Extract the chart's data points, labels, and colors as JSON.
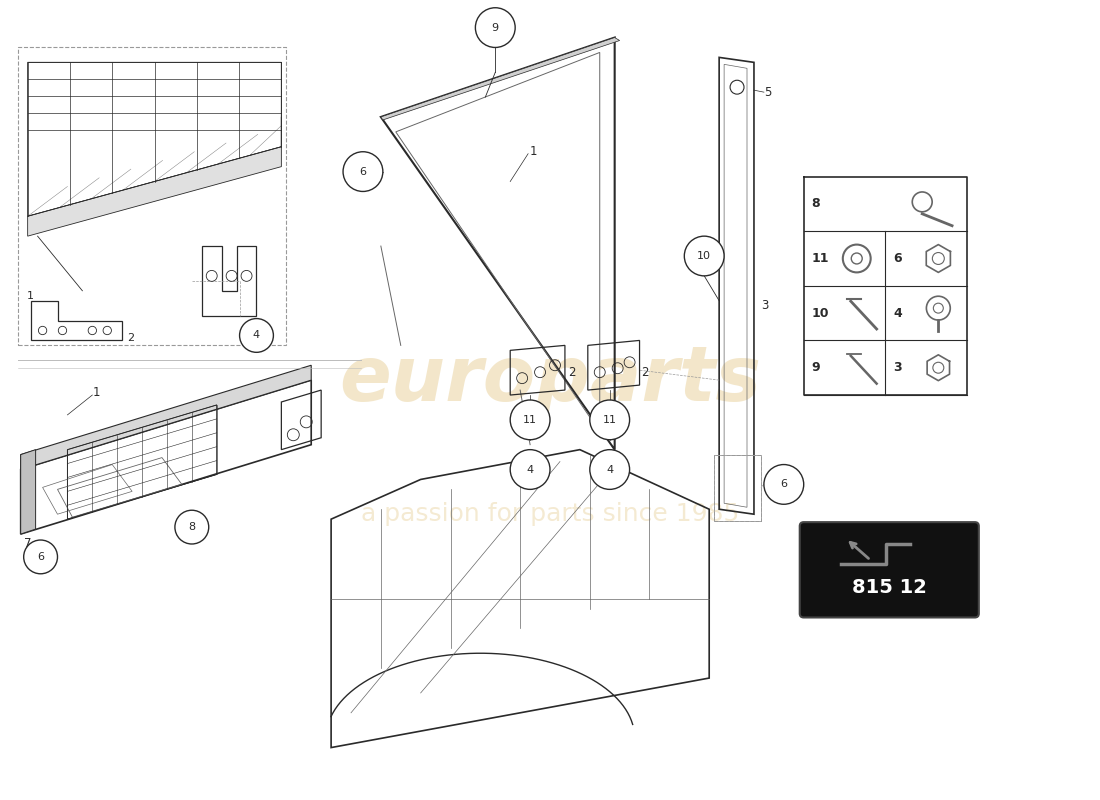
{
  "bg_color": "#ffffff",
  "line_color": "#2a2a2a",
  "part_number": "815 12",
  "watermark_color": "#d4a843",
  "watermark_alpha": 0.28,
  "hardware_items": [
    {
      "num": "8",
      "row": 0,
      "col": 1
    },
    {
      "num": "11",
      "row": 1,
      "col": 0
    },
    {
      "num": "6",
      "row": 1,
      "col": 1
    },
    {
      "num": "10",
      "row": 2,
      "col": 0
    },
    {
      "num": "4",
      "row": 2,
      "col": 1
    },
    {
      "num": "9",
      "row": 3,
      "col": 0
    },
    {
      "num": "3",
      "row": 3,
      "col": 1
    }
  ]
}
